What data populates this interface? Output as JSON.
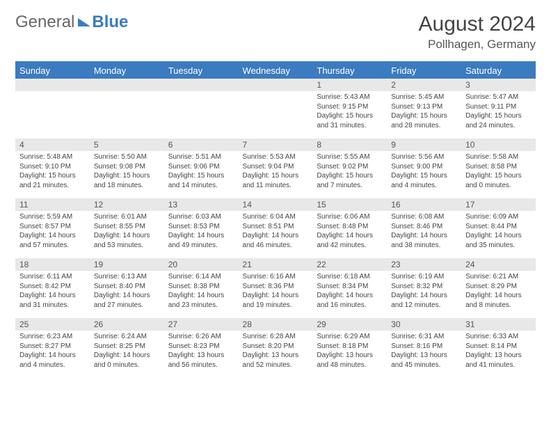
{
  "logo": {
    "part1": "General",
    "part2": "Blue"
  },
  "title": "August 2024",
  "location": "Pollhagen, Germany",
  "colors": {
    "brand": "#3b7bbf",
    "header_text": "#ffffff",
    "daynum_bg": "#e8e8e8",
    "body_text": "#444444",
    "background": "#ffffff"
  },
  "weekdays": [
    "Sunday",
    "Monday",
    "Tuesday",
    "Wednesday",
    "Thursday",
    "Friday",
    "Saturday"
  ],
  "weeks": [
    [
      null,
      null,
      null,
      null,
      {
        "n": "1",
        "sunrise": "Sunrise: 5:43 AM",
        "sunset": "Sunset: 9:15 PM",
        "daylight": "Daylight: 15 hours and 31 minutes."
      },
      {
        "n": "2",
        "sunrise": "Sunrise: 5:45 AM",
        "sunset": "Sunset: 9:13 PM",
        "daylight": "Daylight: 15 hours and 28 minutes."
      },
      {
        "n": "3",
        "sunrise": "Sunrise: 5:47 AM",
        "sunset": "Sunset: 9:11 PM",
        "daylight": "Daylight: 15 hours and 24 minutes."
      }
    ],
    [
      {
        "n": "4",
        "sunrise": "Sunrise: 5:48 AM",
        "sunset": "Sunset: 9:10 PM",
        "daylight": "Daylight: 15 hours and 21 minutes."
      },
      {
        "n": "5",
        "sunrise": "Sunrise: 5:50 AM",
        "sunset": "Sunset: 9:08 PM",
        "daylight": "Daylight: 15 hours and 18 minutes."
      },
      {
        "n": "6",
        "sunrise": "Sunrise: 5:51 AM",
        "sunset": "Sunset: 9:06 PM",
        "daylight": "Daylight: 15 hours and 14 minutes."
      },
      {
        "n": "7",
        "sunrise": "Sunrise: 5:53 AM",
        "sunset": "Sunset: 9:04 PM",
        "daylight": "Daylight: 15 hours and 11 minutes."
      },
      {
        "n": "8",
        "sunrise": "Sunrise: 5:55 AM",
        "sunset": "Sunset: 9:02 PM",
        "daylight": "Daylight: 15 hours and 7 minutes."
      },
      {
        "n": "9",
        "sunrise": "Sunrise: 5:56 AM",
        "sunset": "Sunset: 9:00 PM",
        "daylight": "Daylight: 15 hours and 4 minutes."
      },
      {
        "n": "10",
        "sunrise": "Sunrise: 5:58 AM",
        "sunset": "Sunset: 8:58 PM",
        "daylight": "Daylight: 15 hours and 0 minutes."
      }
    ],
    [
      {
        "n": "11",
        "sunrise": "Sunrise: 5:59 AM",
        "sunset": "Sunset: 8:57 PM",
        "daylight": "Daylight: 14 hours and 57 minutes."
      },
      {
        "n": "12",
        "sunrise": "Sunrise: 6:01 AM",
        "sunset": "Sunset: 8:55 PM",
        "daylight": "Daylight: 14 hours and 53 minutes."
      },
      {
        "n": "13",
        "sunrise": "Sunrise: 6:03 AM",
        "sunset": "Sunset: 8:53 PM",
        "daylight": "Daylight: 14 hours and 49 minutes."
      },
      {
        "n": "14",
        "sunrise": "Sunrise: 6:04 AM",
        "sunset": "Sunset: 8:51 PM",
        "daylight": "Daylight: 14 hours and 46 minutes."
      },
      {
        "n": "15",
        "sunrise": "Sunrise: 6:06 AM",
        "sunset": "Sunset: 8:48 PM",
        "daylight": "Daylight: 14 hours and 42 minutes."
      },
      {
        "n": "16",
        "sunrise": "Sunrise: 6:08 AM",
        "sunset": "Sunset: 8:46 PM",
        "daylight": "Daylight: 14 hours and 38 minutes."
      },
      {
        "n": "17",
        "sunrise": "Sunrise: 6:09 AM",
        "sunset": "Sunset: 8:44 PM",
        "daylight": "Daylight: 14 hours and 35 minutes."
      }
    ],
    [
      {
        "n": "18",
        "sunrise": "Sunrise: 6:11 AM",
        "sunset": "Sunset: 8:42 PM",
        "daylight": "Daylight: 14 hours and 31 minutes."
      },
      {
        "n": "19",
        "sunrise": "Sunrise: 6:13 AM",
        "sunset": "Sunset: 8:40 PM",
        "daylight": "Daylight: 14 hours and 27 minutes."
      },
      {
        "n": "20",
        "sunrise": "Sunrise: 6:14 AM",
        "sunset": "Sunset: 8:38 PM",
        "daylight": "Daylight: 14 hours and 23 minutes."
      },
      {
        "n": "21",
        "sunrise": "Sunrise: 6:16 AM",
        "sunset": "Sunset: 8:36 PM",
        "daylight": "Daylight: 14 hours and 19 minutes."
      },
      {
        "n": "22",
        "sunrise": "Sunrise: 6:18 AM",
        "sunset": "Sunset: 8:34 PM",
        "daylight": "Daylight: 14 hours and 16 minutes."
      },
      {
        "n": "23",
        "sunrise": "Sunrise: 6:19 AM",
        "sunset": "Sunset: 8:32 PM",
        "daylight": "Daylight: 14 hours and 12 minutes."
      },
      {
        "n": "24",
        "sunrise": "Sunrise: 6:21 AM",
        "sunset": "Sunset: 8:29 PM",
        "daylight": "Daylight: 14 hours and 8 minutes."
      }
    ],
    [
      {
        "n": "25",
        "sunrise": "Sunrise: 6:23 AM",
        "sunset": "Sunset: 8:27 PM",
        "daylight": "Daylight: 14 hours and 4 minutes."
      },
      {
        "n": "26",
        "sunrise": "Sunrise: 6:24 AM",
        "sunset": "Sunset: 8:25 PM",
        "daylight": "Daylight: 14 hours and 0 minutes."
      },
      {
        "n": "27",
        "sunrise": "Sunrise: 6:26 AM",
        "sunset": "Sunset: 8:23 PM",
        "daylight": "Daylight: 13 hours and 56 minutes."
      },
      {
        "n": "28",
        "sunrise": "Sunrise: 6:28 AM",
        "sunset": "Sunset: 8:20 PM",
        "daylight": "Daylight: 13 hours and 52 minutes."
      },
      {
        "n": "29",
        "sunrise": "Sunrise: 6:29 AM",
        "sunset": "Sunset: 8:18 PM",
        "daylight": "Daylight: 13 hours and 48 minutes."
      },
      {
        "n": "30",
        "sunrise": "Sunrise: 6:31 AM",
        "sunset": "Sunset: 8:16 PM",
        "daylight": "Daylight: 13 hours and 45 minutes."
      },
      {
        "n": "31",
        "sunrise": "Sunrise: 6:33 AM",
        "sunset": "Sunset: 8:14 PM",
        "daylight": "Daylight: 13 hours and 41 minutes."
      }
    ]
  ]
}
